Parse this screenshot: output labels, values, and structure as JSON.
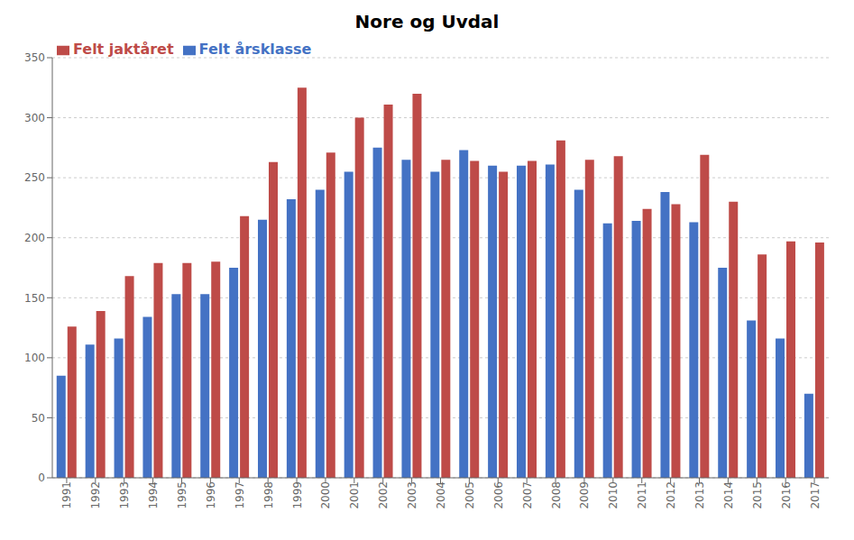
{
  "chart_data": {
    "type": "bar",
    "title": "Nore og Uvdal",
    "categories": [
      "1991",
      "1992",
      "1993",
      "1994",
      "1995",
      "1996",
      "1997",
      "1998",
      "1999",
      "2000",
      "2001",
      "2002",
      "2003",
      "2004",
      "2005",
      "2006",
      "2007",
      "2008",
      "2009",
      "2010",
      "2011",
      "2012",
      "2013",
      "2014",
      "2015",
      "2016",
      "2017"
    ],
    "series": [
      {
        "name": "Felt årsklasse",
        "color": "#4472C4",
        "values": [
          85,
          111,
          116,
          134,
          153,
          153,
          175,
          215,
          232,
          240,
          255,
          275,
          265,
          255,
          273,
          260,
          260,
          261,
          240,
          212,
          214,
          238,
          213,
          175,
          131,
          116,
          70
        ]
      },
      {
        "name": "Felt jaktåret",
        "color": "#BE4B48",
        "values": [
          126,
          139,
          168,
          179,
          179,
          180,
          218,
          263,
          325,
          271,
          300,
          311,
          320,
          265,
          264,
          255,
          264,
          281,
          265,
          268,
          224,
          228,
          269,
          230,
          186,
          197,
          196
        ]
      }
    ],
    "ylim": [
      0,
      350
    ],
    "yticks": [
      0,
      50,
      100,
      150,
      200,
      250,
      300,
      350
    ],
    "grid": true,
    "legend": "upper left"
  }
}
